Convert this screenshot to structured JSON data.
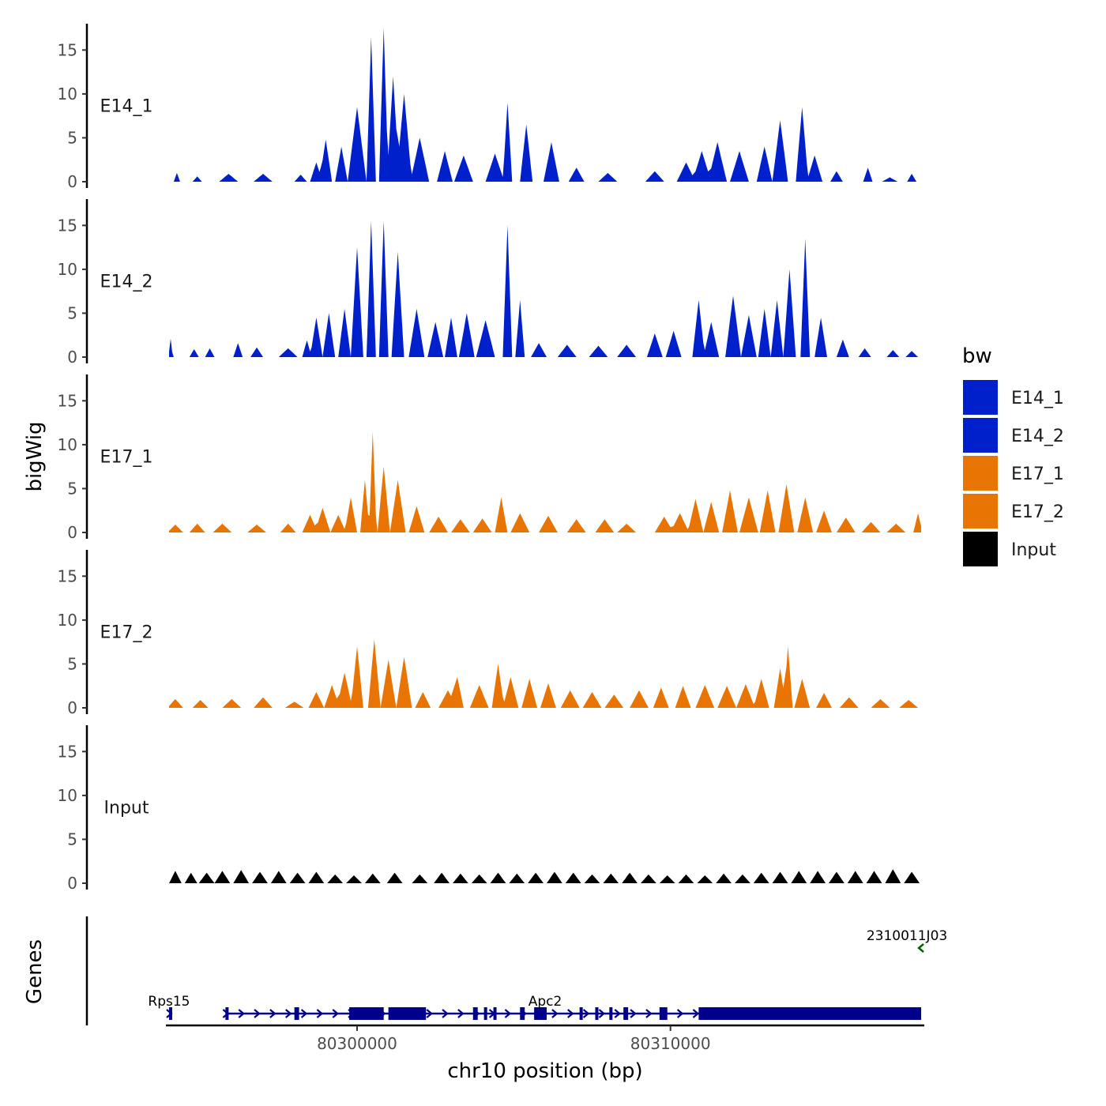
{
  "colors": {
    "E14": "#0020CC",
    "E17": "#E87503",
    "Input": "#000000",
    "gene": "#00008B",
    "gene_minus": "#006400"
  },
  "chart_data": {
    "type": "area",
    "ylabel": "bigWig",
    "xlabel": "chr10 position (bp)",
    "genes_label": "Genes",
    "x_range": [
      80293900,
      80318100
    ],
    "ylim": [
      0,
      18
    ],
    "y_ticks": [
      0,
      5,
      10,
      15
    ],
    "x_ticks": [
      80300000,
      80310000
    ],
    "x_tick_labels": [
      "80300000",
      "80310000"
    ],
    "legend": {
      "title": "bw",
      "entries": [
        {
          "label": "E14_1",
          "color": "#0020CC"
        },
        {
          "label": "E14_2",
          "color": "#0020CC"
        },
        {
          "label": "E17_1",
          "color": "#E87503"
        },
        {
          "label": "E17_2",
          "color": "#E87503"
        },
        {
          "label": "Input",
          "color": "#000000"
        }
      ]
    },
    "track_start": 80294000,
    "track_end": 80318000,
    "series": [
      {
        "name": "E14_1",
        "color": "#0020CC",
        "peaks": [
          [
            80294250,
            1.0,
            100
          ],
          [
            80294900,
            0.6,
            150
          ],
          [
            80295900,
            0.9,
            300
          ],
          [
            80297000,
            0.9,
            300
          ],
          [
            80298200,
            0.8,
            200
          ],
          [
            80298700,
            2.2,
            200
          ],
          [
            80299000,
            4.8,
            200
          ],
          [
            80299500,
            4.0,
            200
          ],
          [
            80300000,
            8.5,
            300
          ],
          [
            80300450,
            16.5,
            150
          ],
          [
            80300850,
            17.5,
            150
          ],
          [
            80301150,
            12.0,
            200
          ],
          [
            80301500,
            10.0,
            250
          ],
          [
            80302000,
            5.0,
            300
          ],
          [
            80302800,
            3.5,
            250
          ],
          [
            80303400,
            3.0,
            300
          ],
          [
            80304400,
            3.2,
            300
          ],
          [
            80304800,
            9.0,
            150
          ],
          [
            80305400,
            6.5,
            200
          ],
          [
            80306200,
            4.5,
            250
          ],
          [
            80307000,
            1.6,
            250
          ],
          [
            80308000,
            1.0,
            300
          ],
          [
            80309500,
            1.2,
            300
          ],
          [
            80310500,
            2.2,
            300
          ],
          [
            80311000,
            3.5,
            300
          ],
          [
            80311500,
            4.5,
            300
          ],
          [
            80312200,
            3.5,
            300
          ],
          [
            80313000,
            4.0,
            250
          ],
          [
            80313500,
            7.0,
            250
          ],
          [
            80314200,
            8.5,
            200
          ],
          [
            80314600,
            3.0,
            250
          ],
          [
            80315300,
            1.2,
            200
          ],
          [
            80316300,
            1.6,
            150
          ],
          [
            80317000,
            0.5,
            250
          ],
          [
            80317700,
            0.9,
            150
          ]
        ]
      },
      {
        "name": "E14_2",
        "color": "#0020CC",
        "peaks": [
          [
            80294050,
            2.1,
            70
          ],
          [
            80294800,
            0.9,
            150
          ],
          [
            80295300,
            1.0,
            150
          ],
          [
            80296200,
            1.6,
            150
          ],
          [
            80296800,
            1.1,
            200
          ],
          [
            80297800,
            1.0,
            300
          ],
          [
            80298400,
            1.9,
            150
          ],
          [
            80298700,
            4.5,
            200
          ],
          [
            80299100,
            5.0,
            200
          ],
          [
            80299600,
            5.5,
            200
          ],
          [
            80300000,
            12.5,
            200
          ],
          [
            80300450,
            15.5,
            150
          ],
          [
            80300850,
            15.5,
            150
          ],
          [
            80301300,
            12.0,
            200
          ],
          [
            80301900,
            5.5,
            250
          ],
          [
            80302500,
            4.0,
            250
          ],
          [
            80303000,
            4.5,
            200
          ],
          [
            80303500,
            5.0,
            250
          ],
          [
            80304100,
            4.2,
            300
          ],
          [
            80304800,
            15.0,
            150
          ],
          [
            80305200,
            6.5,
            150
          ],
          [
            80305800,
            1.6,
            250
          ],
          [
            80306700,
            1.4,
            300
          ],
          [
            80307700,
            1.3,
            300
          ],
          [
            80308600,
            1.4,
            300
          ],
          [
            80309500,
            2.7,
            250
          ],
          [
            80310100,
            3.0,
            250
          ],
          [
            80310900,
            6.5,
            200
          ],
          [
            80311300,
            4.0,
            250
          ],
          [
            80312000,
            7.0,
            250
          ],
          [
            80312500,
            4.8,
            250
          ],
          [
            80313000,
            5.5,
            200
          ],
          [
            80313400,
            6.5,
            200
          ],
          [
            80313800,
            10.0,
            200
          ],
          [
            80314300,
            13.5,
            150
          ],
          [
            80314800,
            4.5,
            200
          ],
          [
            80315500,
            2.0,
            200
          ],
          [
            80316200,
            1.0,
            200
          ],
          [
            80317100,
            0.8,
            200
          ],
          [
            80317700,
            0.7,
            200
          ]
        ]
      },
      {
        "name": "E17_1",
        "color": "#E87503",
        "peaks": [
          [
            80294200,
            0.9,
            250
          ],
          [
            80294900,
            1.0,
            250
          ],
          [
            80295700,
            1.0,
            300
          ],
          [
            80296800,
            0.9,
            300
          ],
          [
            80297800,
            1.0,
            250
          ],
          [
            80298500,
            2.0,
            250
          ],
          [
            80298900,
            2.8,
            250
          ],
          [
            80299400,
            2.0,
            250
          ],
          [
            80299800,
            4.0,
            200
          ],
          [
            80300250,
            6.0,
            150
          ],
          [
            80300500,
            11.5,
            120
          ],
          [
            80300850,
            7.5,
            200
          ],
          [
            80301300,
            6.0,
            250
          ],
          [
            80301900,
            3.0,
            250
          ],
          [
            80302600,
            1.8,
            300
          ],
          [
            80303300,
            1.5,
            300
          ],
          [
            80304000,
            1.6,
            300
          ],
          [
            80304600,
            4.0,
            200
          ],
          [
            80305200,
            2.2,
            300
          ],
          [
            80306100,
            1.9,
            300
          ],
          [
            80307000,
            1.5,
            300
          ],
          [
            80307900,
            1.5,
            300
          ],
          [
            80308600,
            1.0,
            300
          ],
          [
            80309800,
            1.8,
            300
          ],
          [
            80310300,
            2.2,
            300
          ],
          [
            80310800,
            3.8,
            250
          ],
          [
            80311300,
            3.5,
            250
          ],
          [
            80311900,
            4.8,
            250
          ],
          [
            80312500,
            4.0,
            300
          ],
          [
            80313100,
            4.8,
            250
          ],
          [
            80313700,
            5.5,
            250
          ],
          [
            80314300,
            4.0,
            250
          ],
          [
            80314900,
            2.5,
            250
          ],
          [
            80315600,
            1.7,
            300
          ],
          [
            80316400,
            1.2,
            300
          ],
          [
            80317200,
            1.0,
            300
          ],
          [
            80317900,
            2.2,
            150
          ]
        ]
      },
      {
        "name": "E17_2",
        "color": "#E87503",
        "peaks": [
          [
            80294200,
            1.0,
            250
          ],
          [
            80295000,
            0.9,
            250
          ],
          [
            80296000,
            1.0,
            300
          ],
          [
            80297000,
            1.2,
            300
          ],
          [
            80298000,
            0.7,
            300
          ],
          [
            80298700,
            1.8,
            250
          ],
          [
            80299200,
            2.6,
            250
          ],
          [
            80299600,
            4.0,
            250
          ],
          [
            80300000,
            7.0,
            200
          ],
          [
            80300550,
            7.8,
            200
          ],
          [
            80301000,
            5.5,
            250
          ],
          [
            80301500,
            5.8,
            250
          ],
          [
            80302100,
            1.8,
            250
          ],
          [
            80302900,
            2.0,
            300
          ],
          [
            80303200,
            3.5,
            200
          ],
          [
            80303900,
            2.6,
            300
          ],
          [
            80304500,
            5.0,
            200
          ],
          [
            80304900,
            3.5,
            250
          ],
          [
            80305500,
            3.3,
            250
          ],
          [
            80306100,
            2.8,
            250
          ],
          [
            80306800,
            2.0,
            300
          ],
          [
            80307500,
            1.8,
            300
          ],
          [
            80308200,
            1.5,
            300
          ],
          [
            80309000,
            2.0,
            300
          ],
          [
            80309700,
            2.3,
            250
          ],
          [
            80310400,
            2.5,
            250
          ],
          [
            80311100,
            2.6,
            300
          ],
          [
            80311800,
            2.5,
            300
          ],
          [
            80312400,
            2.7,
            300
          ],
          [
            80312900,
            3.3,
            250
          ],
          [
            80313500,
            4.5,
            200
          ],
          [
            80313750,
            7.0,
            150
          ],
          [
            80314200,
            3.3,
            250
          ],
          [
            80314900,
            1.7,
            250
          ],
          [
            80315700,
            1.2,
            300
          ],
          [
            80316700,
            1.0,
            300
          ],
          [
            80317600,
            0.9,
            300
          ]
        ]
      },
      {
        "name": "Input",
        "color": "#000000",
        "peaks": [
          [
            80294200,
            1.4,
            200
          ],
          [
            80294700,
            1.2,
            200
          ],
          [
            80295200,
            1.2,
            250
          ],
          [
            80295700,
            1.4,
            250
          ],
          [
            80296300,
            1.5,
            250
          ],
          [
            80296900,
            1.3,
            250
          ],
          [
            80297500,
            1.4,
            250
          ],
          [
            80298100,
            1.2,
            250
          ],
          [
            80298700,
            1.3,
            250
          ],
          [
            80299300,
            1.0,
            250
          ],
          [
            80299900,
            0.9,
            250
          ],
          [
            80300500,
            1.1,
            250
          ],
          [
            80301200,
            1.2,
            250
          ],
          [
            80302000,
            1.0,
            250
          ],
          [
            80302700,
            1.2,
            250
          ],
          [
            80303300,
            1.1,
            250
          ],
          [
            80303900,
            1.0,
            250
          ],
          [
            80304500,
            1.2,
            250
          ],
          [
            80305100,
            1.1,
            250
          ],
          [
            80305700,
            1.2,
            250
          ],
          [
            80306300,
            1.3,
            250
          ],
          [
            80306900,
            1.2,
            250
          ],
          [
            80307500,
            1.0,
            250
          ],
          [
            80308100,
            1.1,
            250
          ],
          [
            80308700,
            1.2,
            250
          ],
          [
            80309300,
            1.0,
            250
          ],
          [
            80309900,
            0.9,
            250
          ],
          [
            80310500,
            1.0,
            250
          ],
          [
            80311100,
            0.9,
            250
          ],
          [
            80311700,
            1.1,
            250
          ],
          [
            80312300,
            1.0,
            250
          ],
          [
            80312900,
            1.2,
            250
          ],
          [
            80313500,
            1.3,
            250
          ],
          [
            80314100,
            1.4,
            250
          ],
          [
            80314700,
            1.4,
            250
          ],
          [
            80315300,
            1.3,
            250
          ],
          [
            80315900,
            1.4,
            250
          ],
          [
            80316500,
            1.4,
            250
          ],
          [
            80317100,
            1.6,
            250
          ],
          [
            80317700,
            1.3,
            250
          ]
        ]
      }
    ],
    "genes": [
      {
        "name": "Rps15",
        "strand": "+",
        "start": 80294000,
        "end": 80294100,
        "row": "lower",
        "exons": [
          [
            80294000,
            80294100
          ]
        ]
      },
      {
        "name": "Apc2",
        "strand": "+",
        "start": 80295800,
        "end": 80318000,
        "row": "lower",
        "exons": [
          [
            80295800,
            80295900
          ],
          [
            80298000,
            80298150
          ],
          [
            80299750,
            80300850
          ],
          [
            80301000,
            80302200
          ],
          [
            80303700,
            80303850
          ],
          [
            80304050,
            80304150
          ],
          [
            80304350,
            80304450
          ],
          [
            80305200,
            80305350
          ],
          [
            80305650,
            80306050
          ],
          [
            80307100,
            80307200
          ],
          [
            80307600,
            80307700
          ],
          [
            80308050,
            80308150
          ],
          [
            80308500,
            80308650
          ],
          [
            80309650,
            80309900
          ],
          [
            80310900,
            80318000
          ]
        ]
      },
      {
        "name": "2310011J03",
        "strand": "-",
        "start": 80318000,
        "end": 80318100,
        "row": "upper",
        "exons": []
      }
    ]
  }
}
